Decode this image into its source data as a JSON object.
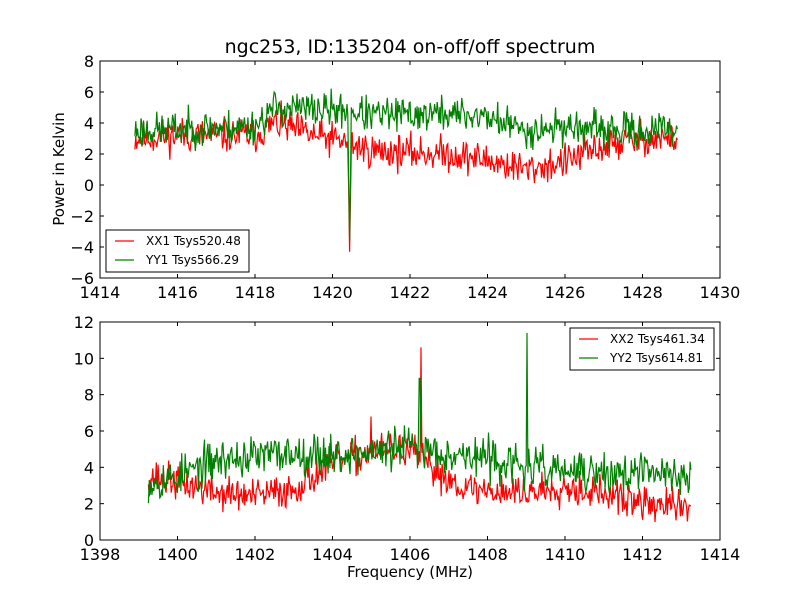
{
  "chart_data": [
    {
      "type": "line",
      "title": "ngc253, ID:135204 on-off/off spectrum",
      "xlabel": "",
      "ylabel": "Power in Kelvin",
      "xlim": [
        1414,
        1430
      ],
      "ylim": [
        -6,
        8
      ],
      "xticks": [
        "1414",
        "1416",
        "1418",
        "1420",
        "1422",
        "1424",
        "1426",
        "1428",
        "1430"
      ],
      "yticks": [
        "-6",
        "-4",
        "-2",
        "0",
        "2",
        "4",
        "6",
        "8"
      ],
      "grid": false,
      "legend_position": "lower-left",
      "x_range": [
        1414.9,
        1428.9
      ],
      "series": [
        {
          "name": "XX1 Tsys520.48",
          "color": "#ff0000",
          "noise": 0.7,
          "seed": 11,
          "trend": [
            [
              1414.9,
              3.0
            ],
            [
              1416,
              3.2
            ],
            [
              1418,
              3.2
            ],
            [
              1418.5,
              4.0
            ],
            [
              1419.5,
              3.2
            ],
            [
              1420.3,
              2.8
            ],
            [
              1421,
              2.2
            ],
            [
              1423,
              2.0
            ],
            [
              1424,
              1.6
            ],
            [
              1425,
              1.0
            ],
            [
              1426,
              1.5
            ],
            [
              1427,
              2.5
            ],
            [
              1428,
              3.0
            ],
            [
              1428.9,
              3.0
            ]
          ],
          "features": [
            [
              1420.45,
              -4.3
            ]
          ]
        },
        {
          "name": "YY1 Tsys566.29",
          "color": "#008000",
          "noise": 0.7,
          "seed": 23,
          "trend": [
            [
              1414.9,
              3.5
            ],
            [
              1416,
              3.6
            ],
            [
              1418,
              3.8
            ],
            [
              1418.5,
              5.0
            ],
            [
              1420.3,
              4.8
            ],
            [
              1421,
              4.5
            ],
            [
              1423,
              4.6
            ],
            [
              1424,
              4.4
            ],
            [
              1425,
              3.5
            ],
            [
              1426,
              3.8
            ],
            [
              1427,
              3.5
            ],
            [
              1428,
              3.5
            ],
            [
              1428.9,
              3.6
            ]
          ],
          "features": [
            [
              1420.45,
              -3.6
            ]
          ]
        }
      ]
    },
    {
      "type": "line",
      "title": "",
      "xlabel": "Frequency (MHz)",
      "ylabel": "",
      "xlim": [
        1398,
        1414
      ],
      "ylim": [
        0,
        12
      ],
      "xticks": [
        "1398",
        "1400",
        "1402",
        "1404",
        "1406",
        "1408",
        "1410",
        "1412",
        "1414"
      ],
      "yticks": [
        "0",
        "2",
        "4",
        "6",
        "8",
        "10",
        "12"
      ],
      "grid": false,
      "legend_position": "upper-right",
      "x_range": [
        1399.25,
        1413.25
      ],
      "series": [
        {
          "name": "XX2 Tsys461.34",
          "color": "#ff0000",
          "noise": 0.6,
          "seed": 37,
          "trend": [
            [
              1399.25,
              3.5
            ],
            [
              1400,
              3.2
            ],
            [
              1401,
              2.6
            ],
            [
              1402,
              2.4
            ],
            [
              1403,
              2.8
            ],
            [
              1404,
              4.2
            ],
            [
              1405,
              4.8
            ],
            [
              1406,
              5.0
            ],
            [
              1406.5,
              4.0
            ],
            [
              1407.5,
              2.8
            ],
            [
              1409,
              2.6
            ],
            [
              1410,
              3.0
            ],
            [
              1411,
              2.5
            ],
            [
              1412,
              2.0
            ],
            [
              1413.25,
              1.8
            ]
          ],
          "features": [
            [
              1406.28,
              10.6
            ],
            [
              1405,
              6.8
            ]
          ]
        },
        {
          "name": "YY2 Tsys614.81",
          "color": "#008000",
          "noise": 0.7,
          "seed": 53,
          "trend": [
            [
              1399.25,
              3.2
            ],
            [
              1400,
              3.5
            ],
            [
              1401,
              4.4
            ],
            [
              1402,
              4.6
            ],
            [
              1403,
              4.8
            ],
            [
              1404,
              4.7
            ],
            [
              1405,
              4.8
            ],
            [
              1406,
              5.2
            ],
            [
              1407,
              4.8
            ],
            [
              1408,
              4.5
            ],
            [
              1409,
              4.0
            ],
            [
              1410,
              3.8
            ],
            [
              1411,
              3.6
            ],
            [
              1412,
              3.7
            ],
            [
              1413.25,
              3.6
            ]
          ],
          "features": [
            [
              1409.02,
              11.4
            ],
            [
              1406.25,
              8.9
            ]
          ]
        }
      ]
    }
  ]
}
